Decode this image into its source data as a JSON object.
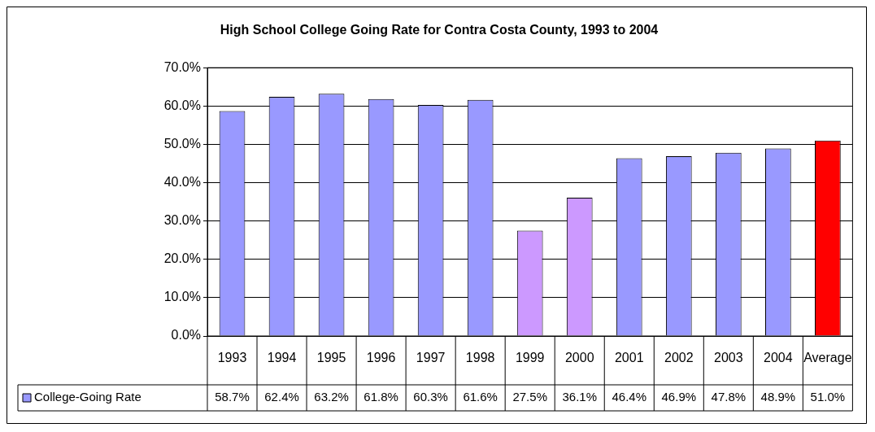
{
  "chart_data": {
    "type": "bar",
    "title": "High School College Going Rate for Contra Costa County, 1993 to 2004",
    "categories": [
      "1993",
      "1994",
      "1995",
      "1996",
      "1997",
      "1998",
      "1999",
      "2000",
      "2001",
      "2002",
      "2003",
      "2004",
      "Average"
    ],
    "series": [
      {
        "name": "College-Going Rate",
        "color": "#9999ff",
        "values": [
          58.7,
          62.4,
          63.2,
          61.8,
          60.3,
          61.6,
          27.5,
          36.1,
          46.4,
          46.9,
          47.8,
          48.9,
          51.0
        ],
        "colors": [
          "#9999ff",
          "#9999ff",
          "#9999ff",
          "#9999ff",
          "#9999ff",
          "#9999ff",
          "#cc99ff",
          "#cc99ff",
          "#9999ff",
          "#9999ff",
          "#9999ff",
          "#9999ff",
          "#ff0000"
        ],
        "value_labels": [
          "58.7%",
          "62.4%",
          "63.2%",
          "61.8%",
          "60.3%",
          "61.6%",
          "27.5%",
          "36.1%",
          "46.4%",
          "46.9%",
          "47.8%",
          "48.9%",
          "51.0%"
        ]
      }
    ],
    "ylim": [
      0,
      70
    ],
    "yticks": [
      {
        "value": 0,
        "label": "0.0%"
      },
      {
        "value": 10,
        "label": "10.0%"
      },
      {
        "value": 20,
        "label": "20.0%"
      },
      {
        "value": 30,
        "label": "30.0%"
      },
      {
        "value": 40,
        "label": "40.0%"
      },
      {
        "value": 50,
        "label": "50.0%"
      },
      {
        "value": 60,
        "label": "60.0%"
      },
      {
        "value": 70,
        "label": "70.0%"
      }
    ],
    "grid": "y",
    "legend": "bottom"
  }
}
